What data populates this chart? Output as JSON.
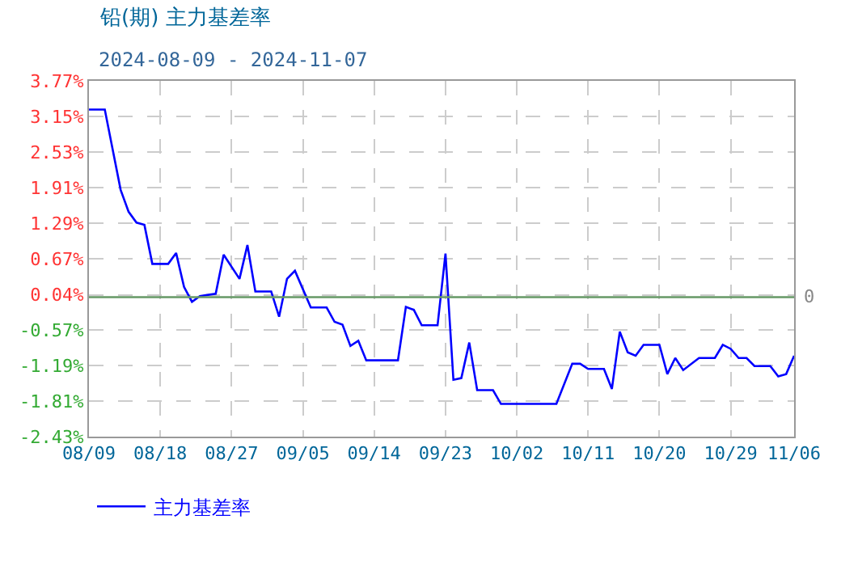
{
  "chart_data": {
    "type": "line",
    "title": "铅(期) 主力基差率",
    "subtitle": "2024-08-09 - 2024-11-07",
    "x": [
      "2024-08-09",
      "2024-08-11",
      "2024-08-12",
      "2024-08-13",
      "2024-08-14",
      "2024-08-15",
      "2024-08-16",
      "2024-08-17",
      "2024-08-19",
      "2024-08-20",
      "2024-08-21",
      "2024-08-22",
      "2024-08-23",
      "2024-08-25",
      "2024-08-26",
      "2024-08-28",
      "2024-08-29",
      "2024-08-30",
      "2024-09-01",
      "2024-09-02",
      "2024-09-03",
      "2024-09-04",
      "2024-09-06",
      "2024-09-08",
      "2024-09-09",
      "2024-09-10",
      "2024-09-11",
      "2024-09-12",
      "2024-09-13",
      "2024-09-17",
      "2024-09-18",
      "2024-09-19",
      "2024-09-20",
      "2024-09-22",
      "2024-09-23",
      "2024-09-24",
      "2024-09-25",
      "2024-09-26",
      "2024-09-27",
      "2024-09-29",
      "2024-09-30",
      "2024-10-07",
      "2024-10-09",
      "2024-10-10",
      "2024-10-11",
      "2024-10-13",
      "2024-10-14",
      "2024-10-15",
      "2024-10-16",
      "2024-10-17",
      "2024-10-18",
      "2024-10-20",
      "2024-10-21",
      "2024-10-22",
      "2024-10-23",
      "2024-10-25",
      "2024-10-27",
      "2024-10-28",
      "2024-10-29",
      "2024-10-30",
      "2024-10-31",
      "2024-11-01",
      "2024-11-03",
      "2024-11-04",
      "2024-11-05",
      "2024-11-06"
    ],
    "series": [
      {
        "name": "主力基差率",
        "color": "#0000ff",
        "values": [
          3.27,
          3.27,
          2.57,
          1.87,
          1.49,
          1.3,
          1.26,
          0.58,
          0.58,
          0.77,
          0.18,
          -0.08,
          0.02,
          0.06,
          0.74,
          0.32,
          0.91,
          0.1,
          0.1,
          -0.34,
          0.32,
          0.46,
          -0.18,
          -0.18,
          -0.43,
          -0.48,
          -0.85,
          -0.76,
          -1.1,
          -1.1,
          -0.17,
          -0.22,
          -0.49,
          -0.49,
          0.76,
          -1.44,
          -1.41,
          -0.79,
          -1.62,
          -1.62,
          -1.86,
          -1.86,
          -1.16,
          -1.16,
          -1.25,
          -1.25,
          -1.6,
          -0.6,
          -0.96,
          -1.02,
          -0.83,
          -0.83,
          -1.34,
          -1.06,
          -1.27,
          -1.06,
          -1.06,
          -0.83,
          -0.9,
          -1.06,
          -1.06,
          -1.2,
          -1.2,
          -1.38,
          -1.34,
          -1.02
        ]
      }
    ],
    "xlim": [
      "2024-08-09",
      "2024-11-06"
    ],
    "xticks": [
      {
        "value": "2024-08-09",
        "label": "08/09"
      },
      {
        "value": "2024-08-18",
        "label": "08/18"
      },
      {
        "value": "2024-08-27",
        "label": "08/27"
      },
      {
        "value": "2024-09-05",
        "label": "09/05"
      },
      {
        "value": "2024-09-14",
        "label": "09/14"
      },
      {
        "value": "2024-09-23",
        "label": "09/23"
      },
      {
        "value": "2024-10-02",
        "label": "10/02"
      },
      {
        "value": "2024-10-11",
        "label": "10/11"
      },
      {
        "value": "2024-10-20",
        "label": "10/20"
      },
      {
        "value": "2024-10-29",
        "label": "10/29"
      },
      {
        "value": "2024-11-06",
        "label": "11/06"
      }
    ],
    "ylim": [
      -2.43,
      3.77
    ],
    "yticks": [
      {
        "value": 3.77,
        "label": "3.77%"
      },
      {
        "value": 3.15,
        "label": "3.15%"
      },
      {
        "value": 2.53,
        "label": "2.53%"
      },
      {
        "value": 1.91,
        "label": "1.91%"
      },
      {
        "value": 1.29,
        "label": "1.29%"
      },
      {
        "value": 0.67,
        "label": "0.67%"
      },
      {
        "value": 0.04,
        "label": "0.04%"
      },
      {
        "value": -0.57,
        "label": "-0.57%"
      },
      {
        "value": -1.19,
        "label": "-1.19%"
      },
      {
        "value": -1.81,
        "label": "-1.81%"
      },
      {
        "value": -2.43,
        "label": "-2.43%"
      }
    ],
    "ref_lines": [
      {
        "axis": "y",
        "value": 0,
        "label": "0",
        "color": "#669966"
      }
    ],
    "grid": true,
    "legend": "bottom left",
    "marker": "none",
    "line_style": "solid"
  }
}
